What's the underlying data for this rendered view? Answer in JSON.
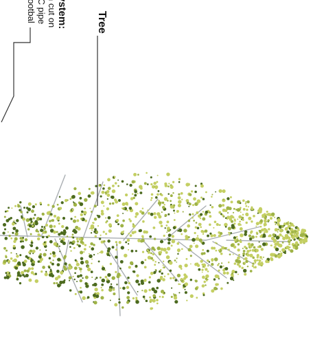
{
  "labels": {
    "tree": "Tree",
    "system_title": "ystem:",
    "system_lines": [
      "n cut on",
      "/C pipe",
      "rootbal"
    ]
  },
  "colors": {
    "background": "#ffffff",
    "leader_line": "#333333",
    "branch": "#a9aeb2",
    "foliage_light": "#c4cf63",
    "foliage_mid": "#9fb347",
    "foliage_dark": "#4c6a1f"
  },
  "icons": [
    "tree-illustration",
    "leader-line"
  ]
}
